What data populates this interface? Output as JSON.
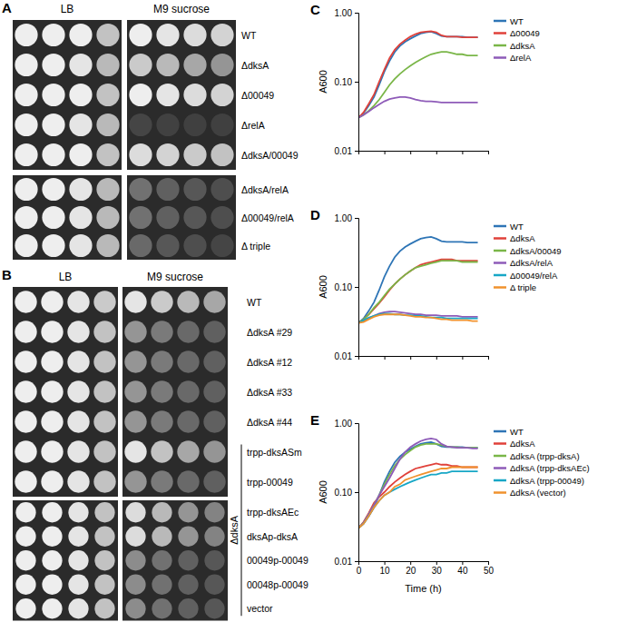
{
  "plates": [
    {
      "panel": "A",
      "media": [
        "LB",
        "M9 sucrose"
      ],
      "groups": [
        {
          "rows": [
            {
              "label": "WT",
              "spots": [
                [
                  1,
                  1,
                  1,
                  0.75
                ],
                [
                  1,
                  0.95,
                  0.9,
                  0.85
                ]
              ]
            },
            {
              "label": "ΔdksA",
              "spots": [
                [
                  1,
                  1,
                  0.95,
                  0.7
                ],
                [
                  0.8,
                  0.7,
                  0.6,
                  0.5
                ]
              ]
            },
            {
              "label": "Δ00049",
              "spots": [
                [
                  1,
                  1,
                  1,
                  0.75
                ],
                [
                  1,
                  0.95,
                  0.9,
                  0.85
                ]
              ]
            },
            {
              "label": "ΔrelA",
              "spots": [
                [
                  1,
                  1,
                  0.95,
                  0.7
                ],
                [
                  0.05,
                  0.03,
                  0.02,
                  0.02
                ]
              ]
            },
            {
              "label": "ΔdksA/00049",
              "spots": [
                [
                  1,
                  1,
                  1,
                  0.75
                ],
                [
                  0.9,
                  0.85,
                  0.8,
                  0.75
                ]
              ]
            }
          ]
        },
        {
          "rows": [
            {
              "label": "ΔdksA/relA",
              "spots": [
                [
                  1,
                  1,
                  0.95,
                  0.7
                ],
                [
                  0.3,
                  0.2,
                  0.15,
                  0.1
                ]
              ]
            },
            {
              "label": "Δ00049/relA",
              "spots": [
                [
                  1,
                  1,
                  0.95,
                  0.7
                ],
                [
                  0.3,
                  0.2,
                  0.15,
                  0.1
                ]
              ]
            },
            {
              "label": "Δ triple",
              "spots": [
                [
                  1,
                  1,
                  0.95,
                  0.7
                ],
                [
                  0.25,
                  0.15,
                  0.1,
                  0.05
                ]
              ]
            }
          ]
        }
      ]
    },
    {
      "panel": "B",
      "media": [
        "LB",
        "M9 sucrose"
      ],
      "bracket_label": "ΔdksA",
      "groups": [
        {
          "rows": [
            {
              "label": "WT",
              "spots": [
                [
                  1,
                  1,
                  0.95,
                  0.8
                ],
                [
                  0.95,
                  0.8,
                  0.7,
                  0.6
                ]
              ],
              "in_bracket": false
            },
            {
              "label": "ΔdksA #29",
              "spots": [
                [
                  1,
                  1,
                  0.95,
                  0.75
                ],
                [
                  0.5,
                  0.35,
                  0.25,
                  0.2
                ]
              ],
              "in_bracket": false
            },
            {
              "label": "ΔdksA #12",
              "spots": [
                [
                  1,
                  1,
                  0.95,
                  0.75
                ],
                [
                  0.5,
                  0.35,
                  0.25,
                  0.2
                ]
              ],
              "in_bracket": false
            },
            {
              "label": "ΔdksA #33",
              "spots": [
                [
                  1,
                  1,
                  0.95,
                  0.75
                ],
                [
                  0.5,
                  0.35,
                  0.25,
                  0.2
                ]
              ],
              "in_bracket": false
            },
            {
              "label": "ΔdksA #44",
              "spots": [
                [
                  1,
                  1,
                  0.95,
                  0.75
                ],
                [
                  0.5,
                  0.35,
                  0.25,
                  0.2
                ]
              ],
              "in_bracket": false
            },
            {
              "label": "trpp-dksASm",
              "spots": [
                [
                  1,
                  1,
                  0.95,
                  0.75
                ],
                [
                  0.95,
                  0.75,
                  0.6,
                  0.5
                ]
              ],
              "in_bracket": true
            },
            {
              "label": "trpp-00049",
              "spots": [
                [
                  1,
                  1,
                  0.95,
                  0.75
                ],
                [
                  0.5,
                  0.35,
                  0.25,
                  0.2
                ]
              ],
              "in_bracket": true
            }
          ]
        },
        {
          "rows": [
            {
              "label": "trpp-dksAEc",
              "spots": [
                [
                  1,
                  1,
                  0.95,
                  0.75
                ],
                [
                  0.9,
                  0.7,
                  0.5,
                  0.4
                ]
              ],
              "in_bracket": true
            },
            {
              "label": "dksAp-dksA",
              "spots": [
                [
                  1,
                  1,
                  0.95,
                  0.75
                ],
                [
                  0.9,
                  0.7,
                  0.5,
                  0.4
                ]
              ],
              "in_bracket": true
            },
            {
              "label": "00049p-00049",
              "spots": [
                [
                  1,
                  1,
                  0.95,
                  0.75
                ],
                [
                  0.45,
                  0.3,
                  0.2,
                  0.15
                ]
              ],
              "in_bracket": true
            },
            {
              "label": "00048p-00049",
              "spots": [
                [
                  1,
                  1,
                  0.95,
                  0.75
                ],
                [
                  0.45,
                  0.3,
                  0.2,
                  0.15
                ]
              ],
              "in_bracket": true
            },
            {
              "label": "vector",
              "spots": [
                [
                  1,
                  1,
                  0.95,
                  0.75
                ],
                [
                  0.45,
                  0.3,
                  0.2,
                  0.15
                ]
              ],
              "in_bracket": true
            }
          ]
        }
      ]
    }
  ],
  "chart_data": [
    {
      "panel": "C",
      "type": "line",
      "y_label": "A600",
      "log": "y",
      "legend": "right",
      "tick_labels": "y",
      "xlim": [
        0,
        50
      ],
      "xticks": [
        0,
        10,
        20,
        30,
        40,
        50
      ],
      "ylim": [
        0.01,
        1
      ],
      "yticks": [
        {
          "value": 0.01,
          "label": "0.01"
        },
        {
          "value": 0.1,
          "label": "0.10"
        },
        {
          "value": 1,
          "label": "1.00"
        }
      ],
      "x": [
        0,
        2,
        4,
        6,
        8,
        10,
        12,
        14,
        16,
        18,
        20,
        22,
        24,
        26,
        28,
        30,
        32,
        34,
        36,
        38,
        40,
        42,
        44,
        46
      ],
      "series": [
        {
          "name": "WT",
          "color": "#2e75b6",
          "values": [
            0.03,
            0.035,
            0.045,
            0.06,
            0.09,
            0.14,
            0.2,
            0.27,
            0.33,
            0.38,
            0.42,
            0.46,
            0.5,
            0.52,
            0.53,
            0.5,
            0.46,
            0.45,
            0.45,
            0.45,
            0.45,
            0.44,
            0.44,
            0.44
          ]
        },
        {
          "name": "Δ00049",
          "color": "#e0413a",
          "values": [
            0.03,
            0.036,
            0.048,
            0.065,
            0.1,
            0.15,
            0.22,
            0.29,
            0.35,
            0.4,
            0.45,
            0.49,
            0.52,
            0.53,
            0.54,
            0.52,
            0.47,
            0.45,
            0.45,
            0.45,
            0.44,
            0.44,
            0.44,
            0.44
          ]
        },
        {
          "name": "ΔdksA",
          "color": "#7ab648",
          "values": [
            0.03,
            0.033,
            0.038,
            0.045,
            0.055,
            0.07,
            0.09,
            0.11,
            0.13,
            0.15,
            0.17,
            0.19,
            0.21,
            0.23,
            0.25,
            0.26,
            0.27,
            0.27,
            0.26,
            0.25,
            0.25,
            0.24,
            0.24,
            0.24
          ]
        },
        {
          "name": "ΔrelA",
          "color": "#8e5bb8",
          "values": [
            0.03,
            0.033,
            0.037,
            0.042,
            0.047,
            0.052,
            0.056,
            0.058,
            0.06,
            0.06,
            0.058,
            0.055,
            0.053,
            0.052,
            0.052,
            0.051,
            0.05,
            0.05,
            0.05,
            0.05,
            0.05,
            0.05,
            0.05,
            0.05
          ]
        }
      ]
    },
    {
      "panel": "D",
      "type": "line",
      "y_label": "A600",
      "log": "y",
      "legend": "right",
      "tick_labels": "y",
      "xlim": [
        0,
        50
      ],
      "xticks": [
        0,
        10,
        20,
        30,
        40,
        50
      ],
      "ylim": [
        0.01,
        1
      ],
      "yticks": [
        {
          "value": 0.01,
          "label": "0.01"
        },
        {
          "value": 0.1,
          "label": "0.10"
        },
        {
          "value": 1,
          "label": "1.00"
        }
      ],
      "x": [
        0,
        2,
        4,
        6,
        8,
        10,
        12,
        14,
        16,
        18,
        20,
        22,
        24,
        26,
        28,
        30,
        32,
        34,
        36,
        38,
        40,
        42,
        44,
        46
      ],
      "series": [
        {
          "name": "WT",
          "color": "#2e75b6",
          "values": [
            0.03,
            0.035,
            0.045,
            0.06,
            0.09,
            0.14,
            0.2,
            0.27,
            0.33,
            0.38,
            0.42,
            0.46,
            0.5,
            0.52,
            0.53,
            0.5,
            0.46,
            0.45,
            0.45,
            0.45,
            0.45,
            0.44,
            0.44,
            0.44
          ]
        },
        {
          "name": "ΔdksA",
          "color": "#e0413a",
          "values": [
            0.03,
            0.034,
            0.04,
            0.048,
            0.058,
            0.072,
            0.09,
            0.11,
            0.13,
            0.15,
            0.17,
            0.19,
            0.21,
            0.22,
            0.23,
            0.24,
            0.25,
            0.25,
            0.25,
            0.24,
            0.24,
            0.24,
            0.24,
            0.24
          ]
        },
        {
          "name": "ΔdksA/00049",
          "color": "#7ab648",
          "values": [
            0.03,
            0.034,
            0.04,
            0.05,
            0.06,
            0.075,
            0.093,
            0.11,
            0.13,
            0.15,
            0.17,
            0.19,
            0.2,
            0.21,
            0.22,
            0.23,
            0.24,
            0.24,
            0.24,
            0.24,
            0.23,
            0.23,
            0.23,
            0.23
          ]
        },
        {
          "name": "ΔdksA/relA",
          "color": "#8e5bb8",
          "values": [
            0.03,
            0.032,
            0.035,
            0.038,
            0.041,
            0.043,
            0.044,
            0.044,
            0.043,
            0.042,
            0.041,
            0.04,
            0.04,
            0.039,
            0.039,
            0.039,
            0.038,
            0.038,
            0.038,
            0.038,
            0.037,
            0.037,
            0.037,
            0.037
          ]
        },
        {
          "name": "Δ00049/relA",
          "color": "#17a7c6",
          "values": [
            0.03,
            0.033,
            0.036,
            0.038,
            0.04,
            0.041,
            0.041,
            0.04,
            0.04,
            0.039,
            0.039,
            0.038,
            0.038,
            0.037,
            0.036,
            0.036,
            0.036,
            0.035,
            0.035,
            0.035,
            0.035,
            0.035,
            0.035,
            0.035
          ]
        },
        {
          "name": "Δ triple",
          "color": "#f0922e",
          "values": [
            0.03,
            0.031,
            0.034,
            0.037,
            0.039,
            0.04,
            0.04,
            0.04,
            0.04,
            0.039,
            0.038,
            0.037,
            0.037,
            0.036,
            0.036,
            0.035,
            0.034,
            0.034,
            0.033,
            0.033,
            0.033,
            0.033,
            0.032,
            0.032
          ]
        }
      ]
    },
    {
      "panel": "E",
      "type": "line",
      "y_label": "A600",
      "x_label": "Time (h)",
      "log": "y",
      "legend": "right",
      "xlim": [
        0,
        50
      ],
      "xticks": [
        0,
        10,
        20,
        30,
        40,
        50
      ],
      "ylim": [
        0.01,
        1
      ],
      "yticks": [
        {
          "value": 0.01,
          "label": "0.01"
        },
        {
          "value": 0.1,
          "label": "0.10"
        },
        {
          "value": 1,
          "label": "1.00"
        }
      ],
      "x": [
        0,
        2,
        4,
        6,
        8,
        10,
        12,
        14,
        16,
        18,
        20,
        22,
        24,
        26,
        28,
        30,
        32,
        34,
        36,
        38,
        40,
        42,
        44,
        46
      ],
      "series": [
        {
          "name": "WT",
          "color": "#2e75b6",
          "values": [
            0.03,
            0.035,
            0.045,
            0.06,
            0.09,
            0.14,
            0.2,
            0.27,
            0.33,
            0.38,
            0.42,
            0.46,
            0.5,
            0.52,
            0.53,
            0.5,
            0.46,
            0.45,
            0.45,
            0.45,
            0.45,
            0.44,
            0.44,
            0.44
          ]
        },
        {
          "name": "ΔdksA",
          "color": "#e0413a",
          "values": [
            0.03,
            0.037,
            0.05,
            0.07,
            0.085,
            0.1,
            0.12,
            0.14,
            0.16,
            0.18,
            0.2,
            0.22,
            0.23,
            0.24,
            0.25,
            0.26,
            0.25,
            0.25,
            0.24,
            0.24,
            0.23,
            0.23,
            0.23,
            0.23
          ]
        },
        {
          "name": "ΔdksA (trpp-dksA)",
          "color": "#7ab648",
          "values": [
            0.03,
            0.036,
            0.048,
            0.065,
            0.09,
            0.13,
            0.18,
            0.24,
            0.3,
            0.35,
            0.4,
            0.45,
            0.48,
            0.5,
            0.5,
            0.5,
            0.48,
            0.46,
            0.45,
            0.45,
            0.44,
            0.44,
            0.44,
            0.44
          ]
        },
        {
          "name": "ΔdksA (trpp-dksAEc)",
          "color": "#8e5bb8",
          "values": [
            0.03,
            0.036,
            0.048,
            0.065,
            0.09,
            0.12,
            0.16,
            0.22,
            0.3,
            0.38,
            0.45,
            0.5,
            0.55,
            0.58,
            0.6,
            0.58,
            0.5,
            0.46,
            0.45,
            0.44,
            0.44,
            0.44,
            0.43,
            0.43
          ]
        },
        {
          "name": "ΔdksA (trpp-00049)",
          "color": "#17a7c6",
          "values": [
            0.03,
            0.035,
            0.045,
            0.06,
            0.075,
            0.09,
            0.1,
            0.11,
            0.12,
            0.13,
            0.14,
            0.15,
            0.16,
            0.17,
            0.18,
            0.18,
            0.19,
            0.19,
            0.2,
            0.2,
            0.2,
            0.2,
            0.2,
            0.2
          ]
        },
        {
          "name": "ΔdksA (vector)",
          "color": "#f0922e",
          "values": [
            0.03,
            0.035,
            0.045,
            0.06,
            0.075,
            0.09,
            0.1,
            0.12,
            0.13,
            0.15,
            0.16,
            0.17,
            0.18,
            0.19,
            0.2,
            0.21,
            0.22,
            0.22,
            0.23,
            0.23,
            0.23,
            0.23,
            0.23,
            0.23
          ]
        }
      ]
    }
  ]
}
